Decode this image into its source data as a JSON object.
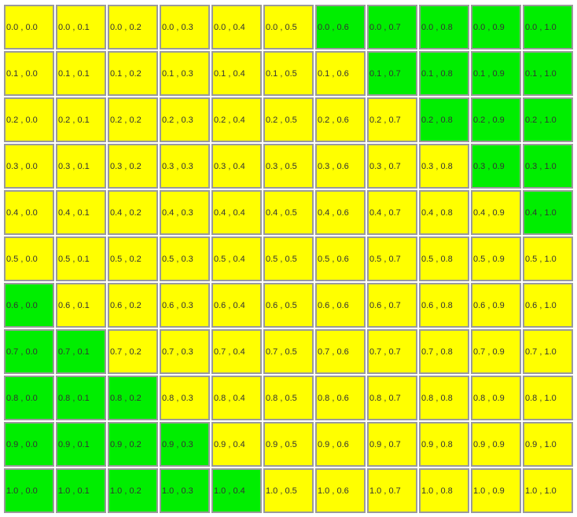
{
  "colors": {
    "yellow": "#ffff00",
    "green": "#00ee00",
    "border": "#9a9a9a",
    "text": "#333333"
  },
  "grid": {
    "rows": [
      [
        "0.0 , 0.0",
        "0.0 , 0.1",
        "0.0 , 0.2",
        "0.0 , 0.3",
        "0.0 , 0.4",
        "0.0 , 0.5",
        "0.0 , 0.6",
        "0.0 , 0.7",
        "0.0 , 0.8",
        "0.0 , 0.9",
        "0.0 , 1.0"
      ],
      [
        "0.1 , 0.0",
        "0.1 , 0.1",
        "0.1 , 0.2",
        "0.1 , 0.3",
        "0.1 , 0.4",
        "0.1 , 0.5",
        "0.1 , 0.6",
        "0.1 , 0.7",
        "0.1 , 0.8",
        "0.1 , 0.9",
        "0.1 , 1.0"
      ],
      [
        "0.2 , 0.0",
        "0.2 , 0.1",
        "0.2 , 0.2",
        "0.2 , 0.3",
        "0.2 , 0.4",
        "0.2 , 0.5",
        "0.2 , 0.6",
        "0.2 , 0.7",
        "0.2 , 0.8",
        "0.2 , 0.9",
        "0.2 , 1.0"
      ],
      [
        "0.3 , 0.0",
        "0.3 , 0.1",
        "0.3 , 0.2",
        "0.3 , 0.3",
        "0.3 , 0.4",
        "0.3 , 0.5",
        "0.3 , 0.6",
        "0.3 , 0.7",
        "0.3 , 0.8",
        "0.3 , 0.9",
        "0.3 , 1.0"
      ],
      [
        "0.4 , 0.0",
        "0.4 , 0.1",
        "0.4 , 0.2",
        "0.4 , 0.3",
        "0.4 , 0.4",
        "0.4 , 0.5",
        "0.4 , 0.6",
        "0.4 , 0.7",
        "0.4 , 0.8",
        "0.4 , 0.9",
        "0.4 , 1.0"
      ],
      [
        "0.5 , 0.0",
        "0.5 , 0.1",
        "0.5 , 0.2",
        "0.5 , 0.3",
        "0.5 , 0.4",
        "0.5 , 0.5",
        "0.5 , 0.6",
        "0.5 , 0.7",
        "0.5 , 0.8",
        "0.5 , 0.9",
        "0.5 , 1.0"
      ],
      [
        "0.6 , 0.0",
        "0.6 , 0.1",
        "0.6 , 0.2",
        "0.6 , 0.3",
        "0.6 , 0.4",
        "0.6 , 0.5",
        "0.6 , 0.6",
        "0.6 , 0.7",
        "0.6 , 0.8",
        "0.6 , 0.9",
        "0.6 , 1.0"
      ],
      [
        "0.7 , 0.0",
        "0.7 , 0.1",
        "0.7 , 0.2",
        "0.7 , 0.3",
        "0.7 , 0.4",
        "0.7 , 0.5",
        "0.7 , 0.6",
        "0.7 , 0.7",
        "0.7 , 0.8",
        "0.7 , 0.9",
        "0.7 , 1.0"
      ],
      [
        "0.8 , 0.0",
        "0.8 , 0.1",
        "0.8 , 0.2",
        "0.8 , 0.3",
        "0.8 , 0.4",
        "0.8 , 0.5",
        "0.8 , 0.6",
        "0.8 , 0.7",
        "0.8 , 0.8",
        "0.8 , 0.9",
        "0.8 , 1.0"
      ],
      [
        "0.9 , 0.0",
        "0.9 , 0.1",
        "0.9 , 0.2",
        "0.9 , 0.3",
        "0.9 , 0.4",
        "0.9 , 0.5",
        "0.9 , 0.6",
        "0.9 , 0.7",
        "0.9 , 0.8",
        "0.9 , 0.9",
        "0.9 , 1.0"
      ],
      [
        "1.0 , 0.0",
        "1.0 , 0.1",
        "1.0 , 0.2",
        "1.0 , 0.3",
        "1.0 , 0.4",
        "1.0 , 0.5",
        "1.0 , 0.6",
        "1.0 , 0.7",
        "1.0 , 0.8",
        "1.0 , 0.9",
        "1.0 , 1.0"
      ]
    ],
    "fill": [
      [
        "yellow",
        "yellow",
        "yellow",
        "yellow",
        "yellow",
        "yellow",
        "green",
        "green",
        "green",
        "green",
        "green"
      ],
      [
        "yellow",
        "yellow",
        "yellow",
        "yellow",
        "yellow",
        "yellow",
        "yellow",
        "green",
        "green",
        "green",
        "green"
      ],
      [
        "yellow",
        "yellow",
        "yellow",
        "yellow",
        "yellow",
        "yellow",
        "yellow",
        "yellow",
        "green",
        "green",
        "green"
      ],
      [
        "yellow",
        "yellow",
        "yellow",
        "yellow",
        "yellow",
        "yellow",
        "yellow",
        "yellow",
        "yellow",
        "green",
        "green"
      ],
      [
        "yellow",
        "yellow",
        "yellow",
        "yellow",
        "yellow",
        "yellow",
        "yellow",
        "yellow",
        "yellow",
        "yellow",
        "green"
      ],
      [
        "yellow",
        "yellow",
        "yellow",
        "yellow",
        "yellow",
        "yellow",
        "yellow",
        "yellow",
        "yellow",
        "yellow",
        "yellow"
      ],
      [
        "green",
        "yellow",
        "yellow",
        "yellow",
        "yellow",
        "yellow",
        "yellow",
        "yellow",
        "yellow",
        "yellow",
        "yellow"
      ],
      [
        "green",
        "green",
        "yellow",
        "yellow",
        "yellow",
        "yellow",
        "yellow",
        "yellow",
        "yellow",
        "yellow",
        "yellow"
      ],
      [
        "green",
        "green",
        "green",
        "yellow",
        "yellow",
        "yellow",
        "yellow",
        "yellow",
        "yellow",
        "yellow",
        "yellow"
      ],
      [
        "green",
        "green",
        "green",
        "green",
        "yellow",
        "yellow",
        "yellow",
        "yellow",
        "yellow",
        "yellow",
        "yellow"
      ],
      [
        "green",
        "green",
        "green",
        "green",
        "green",
        "yellow",
        "yellow",
        "yellow",
        "yellow",
        "yellow",
        "yellow"
      ]
    ]
  }
}
